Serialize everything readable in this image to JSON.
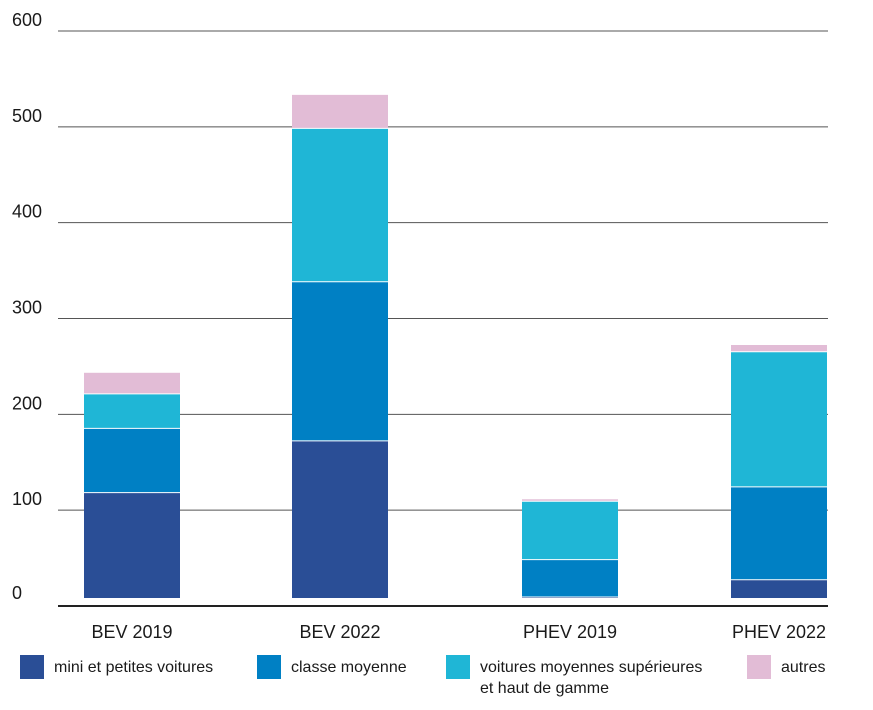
{
  "chart_data": {
    "type": "bar",
    "stacked": true,
    "categories": [
      "BEV 2019",
      "BEV 2022",
      "PHEV 2019",
      "PHEV 2022"
    ],
    "series": [
      {
        "name": "mini et petites voitures",
        "color": "#2a4e96",
        "values": [
          110,
          164,
          1,
          19
        ]
      },
      {
        "name": "classe moyenne",
        "color": "#0080c4",
        "values": [
          67,
          166,
          39,
          97
        ]
      },
      {
        "name": "voitures moyennes supérieures et haut de gamme",
        "color": "#1fb6d6",
        "values": [
          36,
          160,
          61,
          141
        ]
      },
      {
        "name": "autres",
        "color": "#e2bcd6",
        "values": [
          22,
          35,
          2,
          7
        ]
      }
    ],
    "y_ticks": [
      "0",
      "100",
      "200",
      "300",
      "400",
      "500",
      "600"
    ],
    "ylim": [
      0,
      600
    ],
    "grid": true,
    "legend_position": "bottom"
  },
  "legend": {
    "items": [
      {
        "lines": [
          "mini et petites voitures"
        ],
        "color": "#2a4e96"
      },
      {
        "lines": [
          "classe moyenne"
        ],
        "color": "#0080c4"
      },
      {
        "lines": [
          "voitures moyennes supérieures",
          "et haut de gamme"
        ],
        "color": "#1fb6d6"
      },
      {
        "lines": [
          "autres"
        ],
        "color": "#e2bcd6"
      }
    ]
  }
}
